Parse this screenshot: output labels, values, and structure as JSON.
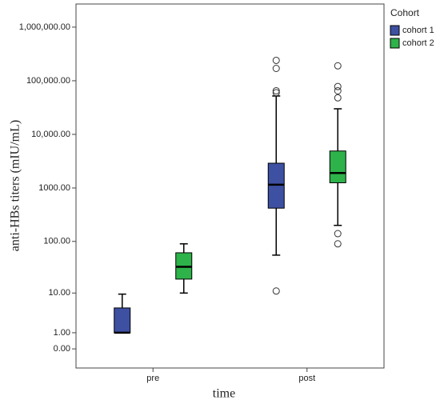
{
  "chart_data": {
    "type": "box",
    "x_label": "time",
    "y_label": "anti-HBs titers (mIU/mL)",
    "categories": [
      "pre",
      "post"
    ],
    "yscale": "log1p",
    "ylim": [
      -0.56,
      2700000
    ],
    "yticks": [
      {
        "value": 0,
        "label": "0.00"
      },
      {
        "value": 1,
        "label": "1.00"
      },
      {
        "value": 10,
        "label": "10.00"
      },
      {
        "value": 100,
        "label": "100.00"
      },
      {
        "value": 1000,
        "label": "1000.00"
      },
      {
        "value": 10000,
        "label": "10,000.00"
      },
      {
        "value": 100000,
        "label": "100,000.00"
      },
      {
        "value": 1000000,
        "label": "1,000,000.00"
      }
    ],
    "legend_title": "Cohort",
    "legend": "outside-right",
    "series": [
      {
        "name": "cohort 1",
        "color": "#3d50a2",
        "boxes": [
          {
            "whislo": 1,
            "q1": 1,
            "med": 1,
            "q3": 4.8,
            "whishi": 9.5,
            "fliers": []
          },
          {
            "whislo": 55,
            "q1": 420,
            "med": 1150,
            "q3": 2900,
            "whishi": 52000,
            "fliers": [
              240000,
              170000,
              65000,
              60000,
              11
            ]
          }
        ]
      },
      {
        "name": "cohort 2",
        "color": "#2eb24a",
        "boxes": [
          {
            "whislo": 10,
            "q1": 19,
            "med": 33,
            "q3": 61,
            "whishi": 90,
            "fliers": []
          },
          {
            "whislo": 200,
            "q1": 1250,
            "med": 1900,
            "q3": 4900,
            "whishi": 30000,
            "fliers": [
              190000,
              78000,
              65000,
              48000,
              140,
              90
            ]
          }
        ]
      }
    ]
  }
}
